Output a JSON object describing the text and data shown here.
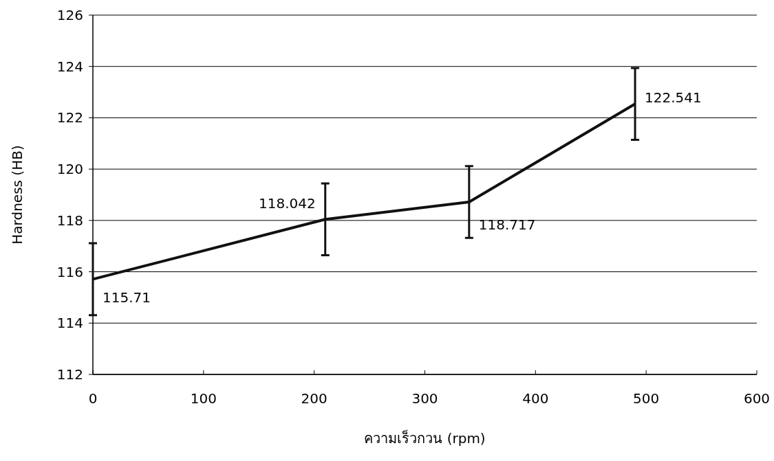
{
  "chart_data": {
    "type": "line",
    "xlabel": "ความเร็วกวน (rpm)",
    "ylabel": "Hardness (HB)",
    "x": [
      0,
      210,
      340,
      490
    ],
    "series": [
      {
        "color": "#111111",
        "values": [
          115.71,
          118.042,
          118.717,
          122.541
        ],
        "errors": [
          1.4,
          1.4,
          1.4,
          1.4
        ]
      }
    ],
    "data_labels": true,
    "marker": "none",
    "line_style": "solid",
    "grid": "y",
    "xlim": [
      0,
      600
    ],
    "xticks": [
      0,
      100,
      200,
      300,
      400,
      500,
      600
    ],
    "ylim": [
      112,
      126
    ],
    "yticks": [
      112,
      114,
      116,
      118,
      120,
      122,
      124,
      126
    ]
  }
}
